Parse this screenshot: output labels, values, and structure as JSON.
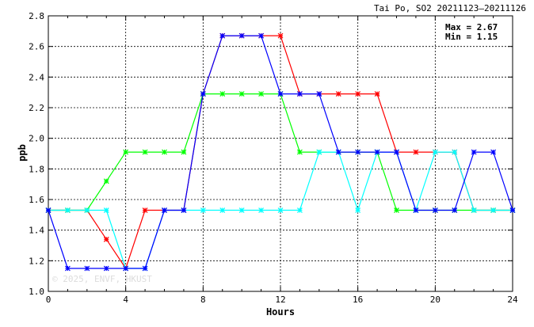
{
  "chart_data": {
    "type": "line",
    "title": "Tai Po, SO2 20211123—20211126",
    "xlabel": "Hours",
    "ylabel": "ppb",
    "xlim": [
      0,
      24
    ],
    "ylim": [
      1.0,
      2.8
    ],
    "xticks": [
      0,
      4,
      8,
      12,
      16,
      20,
      24
    ],
    "yticks": [
      1.0,
      1.2,
      1.4,
      1.6,
      1.8,
      2.0,
      2.2,
      2.4,
      2.6,
      2.8
    ],
    "grid": true,
    "stats": {
      "max": "Max = 2.67",
      "min": "Min = 1.15"
    },
    "watermark": "© 2025, ENVF, HKUST",
    "x": [
      0,
      1,
      2,
      3,
      4,
      5,
      6,
      7,
      8,
      9,
      10,
      11,
      12,
      13,
      14,
      15,
      16,
      17,
      18,
      19,
      20,
      21,
      22,
      23,
      24
    ],
    "series": [
      {
        "color": "#ff0000",
        "values": [
          1.53,
          1.53,
          1.53,
          1.34,
          1.15,
          1.53,
          1.53,
          1.53,
          2.29,
          2.67,
          2.67,
          2.67,
          2.67,
          2.29,
          2.29,
          2.29,
          2.29,
          2.29,
          1.91,
          1.91,
          1.91,
          1.91,
          1.53,
          1.53,
          1.53
        ]
      },
      {
        "color": "#00ff00",
        "values": [
          1.53,
          1.53,
          1.53,
          1.72,
          1.91,
          1.91,
          1.91,
          1.91,
          2.29,
          2.29,
          2.29,
          2.29,
          2.29,
          1.91,
          1.91,
          1.91,
          1.91,
          1.91,
          1.53,
          1.53,
          1.53,
          1.53,
          1.53,
          1.53,
          1.53
        ]
      },
      {
        "color": "#00ffff",
        "values": [
          1.53,
          1.53,
          1.53,
          1.53,
          1.15,
          1.15,
          1.53,
          1.53,
          1.53,
          1.53,
          1.53,
          1.53,
          1.53,
          1.53,
          1.91,
          1.91,
          1.53,
          1.91,
          1.91,
          1.53,
          1.91,
          1.91,
          1.53,
          1.53,
          1.53
        ]
      },
      {
        "color": "#0000ff",
        "values": [
          1.53,
          1.15,
          1.15,
          1.15,
          1.15,
          1.15,
          1.53,
          1.53,
          2.29,
          2.67,
          2.67,
          2.67,
          2.29,
          2.29,
          2.29,
          1.91,
          1.91,
          1.91,
          1.91,
          1.53,
          1.53,
          1.53,
          1.91,
          1.91,
          1.53
        ]
      }
    ]
  }
}
